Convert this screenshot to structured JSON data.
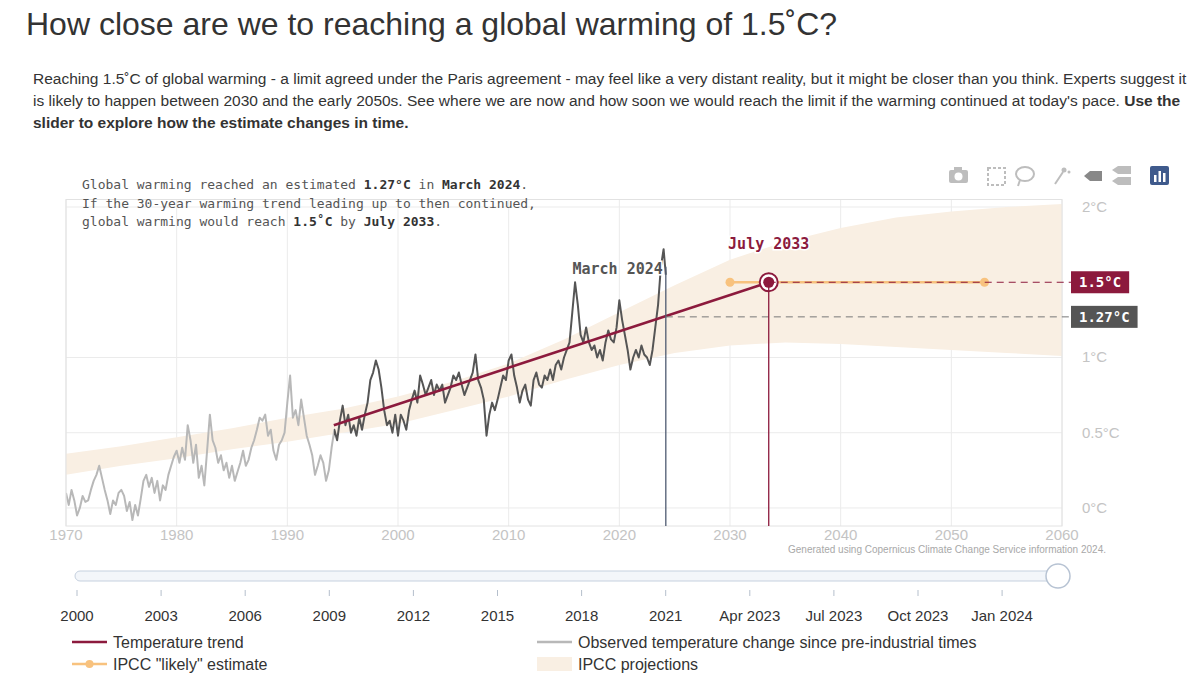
{
  "chart_data": {
    "type": "line",
    "title": "How close are we to reaching a global warming of 1.5˚C?",
    "subtitle": [
      {
        "text": "Reaching 1.5˚C of global warming - a limit agreed under the Paris agreement - may feel like a very distant reality, but it might be closer than you think. Experts suggest it is likely to happen between 2030 and the early 2050s. See where we are now and how soon we would reach the limit if the warming continued at today's pace. ",
        "bold": false
      },
      {
        "text": "Use the slider to explore how the estimate changes in time.",
        "bold": true
      }
    ],
    "note": [
      [
        {
          "text": "Global warming reached an estimated ",
          "bold": false
        },
        {
          "text": "1.27°C",
          "bold": true
        },
        {
          "text": " in ",
          "bold": false
        },
        {
          "text": "March 2024",
          "bold": true
        },
        {
          "text": ".",
          "bold": false
        }
      ],
      [
        {
          "text": "If the 30-year warming trend leading up to then continued,",
          "bold": false
        }
      ],
      [
        {
          "text": "global warming would reach ",
          "bold": false
        },
        {
          "text": "1.5˚C",
          "bold": true
        },
        {
          "text": " by ",
          "bold": false
        },
        {
          "text": "July 2033",
          "bold": true
        },
        {
          "text": ".",
          "bold": false
        }
      ]
    ],
    "credit": "Generated using Copernicus Climate Change Service information 2024.",
    "xlim": [
      1970,
      2060
    ],
    "xticks": [
      1970,
      1980,
      1990,
      2000,
      2010,
      2020,
      2030,
      2040,
      2050,
      2060
    ],
    "ylim": [
      -0.12,
      2.05
    ],
    "yticks": [
      {
        "value": 0,
        "label": "0°C"
      },
      {
        "value": 0.5,
        "label": "0.5°C"
      },
      {
        "value": 1,
        "label": "1°C"
      },
      {
        "value": 2,
        "label": "2°C"
      }
    ],
    "grid": true,
    "legend": "bottom",
    "series": [
      {
        "name": "Temperature trend",
        "type": "line",
        "color": "#8c1a3d",
        "marker": "ring",
        "x": [
          1994.2,
          2033.5
        ],
        "values": [
          0.55,
          1.5
        ]
      },
      {
        "name": "Observed temperature change since pre-industrial times",
        "type": "line",
        "color": "#b8b8b8",
        "x": [
          1970,
          1970.25,
          1970.5,
          1970.75,
          1971,
          1971.25,
          1971.5,
          1971.75,
          1972,
          1972.25,
          1972.5,
          1972.75,
          1973,
          1973.25,
          1973.5,
          1973.75,
          1974,
          1974.25,
          1974.5,
          1974.75,
          1975,
          1975.25,
          1975.5,
          1975.75,
          1976,
          1976.25,
          1976.5,
          1976.75,
          1977,
          1977.25,
          1977.5,
          1977.75,
          1978,
          1978.25,
          1978.5,
          1978.75,
          1979,
          1979.25,
          1979.5,
          1979.75,
          1980,
          1980.25,
          1980.5,
          1980.75,
          1981,
          1981.25,
          1981.5,
          1981.75,
          1982,
          1982.25,
          1982.5,
          1982.75,
          1983,
          1983.25,
          1983.5,
          1983.75,
          1984,
          1984.25,
          1984.5,
          1984.75,
          1985,
          1985.25,
          1985.5,
          1985.75,
          1986,
          1986.25,
          1986.5,
          1986.75,
          1987,
          1987.25,
          1987.5,
          1987.75,
          1988,
          1988.25,
          1988.5,
          1988.75,
          1989,
          1989.25,
          1989.5,
          1989.75,
          1990,
          1990.25,
          1990.5,
          1990.75,
          1991,
          1991.25,
          1991.5,
          1991.75,
          1992,
          1992.25,
          1992.5,
          1992.75,
          1993,
          1993.25,
          1993.5,
          1993.75,
          1994,
          1994.25,
          1994.5,
          1994.75,
          1995,
          1995.25,
          1995.5,
          1995.75,
          1996,
          1996.25,
          1996.5,
          1996.75,
          1997,
          1997.25,
          1997.5,
          1997.75,
          1998,
          1998.25,
          1998.5,
          1998.75,
          1999,
          1999.25,
          1999.5,
          1999.75,
          2000,
          2000.25,
          2000.5,
          2000.75,
          2001,
          2001.25,
          2001.5,
          2001.75,
          2002,
          2002.25,
          2002.5,
          2002.75,
          2003,
          2003.25,
          2003.5,
          2003.75,
          2004,
          2004.25,
          2004.5,
          2004.75,
          2005,
          2005.25,
          2005.5,
          2005.75,
          2006,
          2006.25,
          2006.5,
          2006.75,
          2007,
          2007.25,
          2007.5,
          2007.75,
          2008,
          2008.25,
          2008.5,
          2008.75,
          2009,
          2009.25,
          2009.5,
          2009.75,
          2010,
          2010.25,
          2010.5,
          2010.75,
          2011,
          2011.25,
          2011.5,
          2011.75,
          2012,
          2012.25,
          2012.5,
          2012.75,
          2013,
          2013.25,
          2013.5,
          2013.75,
          2014,
          2014.25,
          2014.5,
          2014.75,
          2015,
          2015.25,
          2015.5,
          2015.75,
          2016,
          2016.25,
          2016.5,
          2016.75,
          2017,
          2017.25,
          2017.5,
          2017.75,
          2018,
          2018.25,
          2018.5,
          2018.75,
          2019,
          2019.25,
          2019.5,
          2019.75,
          2020,
          2020.25,
          2020.5,
          2020.75,
          2021,
          2021.25,
          2021.5,
          2021.75,
          2022,
          2022.25,
          2022.5,
          2022.75,
          2023,
          2023.25,
          2023.5,
          2023.75,
          2024,
          2024.2
        ],
        "values": [
          0.1,
          0.02,
          0.12,
          0.05,
          -0.05,
          0.0,
          0.08,
          0.04,
          0.05,
          0.12,
          0.18,
          0.22,
          0.28,
          0.2,
          0.12,
          0.05,
          -0.04,
          0.05,
          0.02,
          0.1,
          0.12,
          0.08,
          -0.02,
          0.04,
          -0.08,
          0.02,
          -0.05,
          0.06,
          0.18,
          0.22,
          0.14,
          0.2,
          0.1,
          0.18,
          0.05,
          0.15,
          0.12,
          0.22,
          0.28,
          0.34,
          0.38,
          0.3,
          0.4,
          0.32,
          0.55,
          0.45,
          0.3,
          0.42,
          0.2,
          0.28,
          0.15,
          0.38,
          0.62,
          0.45,
          0.4,
          0.3,
          0.35,
          0.25,
          0.3,
          0.2,
          0.28,
          0.18,
          0.24,
          0.3,
          0.38,
          0.28,
          0.32,
          0.4,
          0.45,
          0.52,
          0.6,
          0.58,
          0.62,
          0.48,
          0.52,
          0.38,
          0.32,
          0.42,
          0.45,
          0.5,
          0.7,
          0.88,
          0.6,
          0.65,
          0.55,
          0.72,
          0.6,
          0.48,
          0.42,
          0.35,
          0.22,
          0.28,
          0.35,
          0.3,
          0.18,
          0.25,
          0.4,
          0.52,
          0.45,
          0.58,
          0.68,
          0.55,
          0.62,
          0.5,
          0.55,
          0.48,
          0.6,
          0.52,
          0.62,
          0.7,
          0.85,
          0.9,
          0.98,
          0.92,
          0.8,
          0.65,
          0.55,
          0.58,
          0.5,
          0.62,
          0.48,
          0.62,
          0.58,
          0.52,
          0.65,
          0.72,
          0.78,
          0.7,
          0.88,
          0.82,
          0.75,
          0.8,
          0.85,
          0.75,
          0.82,
          0.78,
          0.82,
          0.7,
          0.75,
          0.8,
          0.88,
          0.85,
          0.9,
          0.82,
          0.75,
          0.8,
          0.85,
          0.9,
          1.02,
          0.85,
          0.8,
          0.72,
          0.48,
          0.62,
          0.7,
          0.65,
          0.72,
          0.8,
          0.88,
          0.85,
          0.98,
          1.02,
          0.88,
          0.8,
          0.7,
          0.78,
          0.82,
          0.72,
          0.68,
          0.85,
          0.9,
          0.82,
          0.8,
          0.88,
          0.85,
          0.92,
          0.85,
          0.95,
          0.98,
          0.92,
          1.0,
          1.05,
          1.1,
          1.3,
          1.5,
          1.35,
          1.15,
          1.1,
          1.2,
          1.1,
          1.05,
          1.08,
          1.0,
          1.05,
          0.98,
          1.1,
          1.18,
          1.12,
          1.1,
          1.2,
          1.38,
          1.25,
          1.15,
          1.05,
          0.92,
          1.0,
          1.05,
          1.0,
          1.08,
          1.02,
          1.0,
          0.95,
          1.05,
          1.2,
          1.35,
          1.6,
          1.72,
          1.55
        ]
      },
      {
        "name": "IPCC \"likely\" estimate",
        "type": "line",
        "color": "#f8c27e",
        "marker": "circle",
        "x": [
          2030,
          2053
        ],
        "values": [
          1.5,
          1.5
        ]
      },
      {
        "name": "IPCC projections",
        "type": "area",
        "color": "#f9efe3",
        "x": [
          1970,
          1975,
          1980,
          1985,
          1990,
          1995,
          2000,
          2005,
          2010,
          2015,
          2020,
          2025,
          2030,
          2035,
          2040,
          2045,
          2050,
          2055,
          2060
        ],
        "lower": [
          0.22,
          0.28,
          0.33,
          0.39,
          0.44,
          0.5,
          0.56,
          0.65,
          0.74,
          0.85,
          0.95,
          1.03,
          1.08,
          1.1,
          1.09,
          1.07,
          1.05,
          1.03,
          1.01
        ],
        "upper": [
          0.36,
          0.41,
          0.47,
          0.53,
          0.6,
          0.66,
          0.74,
          0.84,
          0.96,
          1.12,
          1.3,
          1.48,
          1.65,
          1.77,
          1.86,
          1.93,
          1.97,
          2.0,
          2.02
        ]
      }
    ],
    "annotations": [
      {
        "x": 2024.2,
        "value": 1.27,
        "date_label": "March 2024",
        "value_label": "1.27°C"
      },
      {
        "x": 2033.5,
        "value": 1.5,
        "date_label": "July 2033",
        "value_label": "1.5°C"
      }
    ],
    "slider": {
      "labels": [
        "2000",
        "2003",
        "2006",
        "2009",
        "2012",
        "2015",
        "2018",
        "2021",
        "Apr 2023",
        "Jul 2023",
        "Oct 2023",
        "Jan 2024"
      ]
    }
  }
}
